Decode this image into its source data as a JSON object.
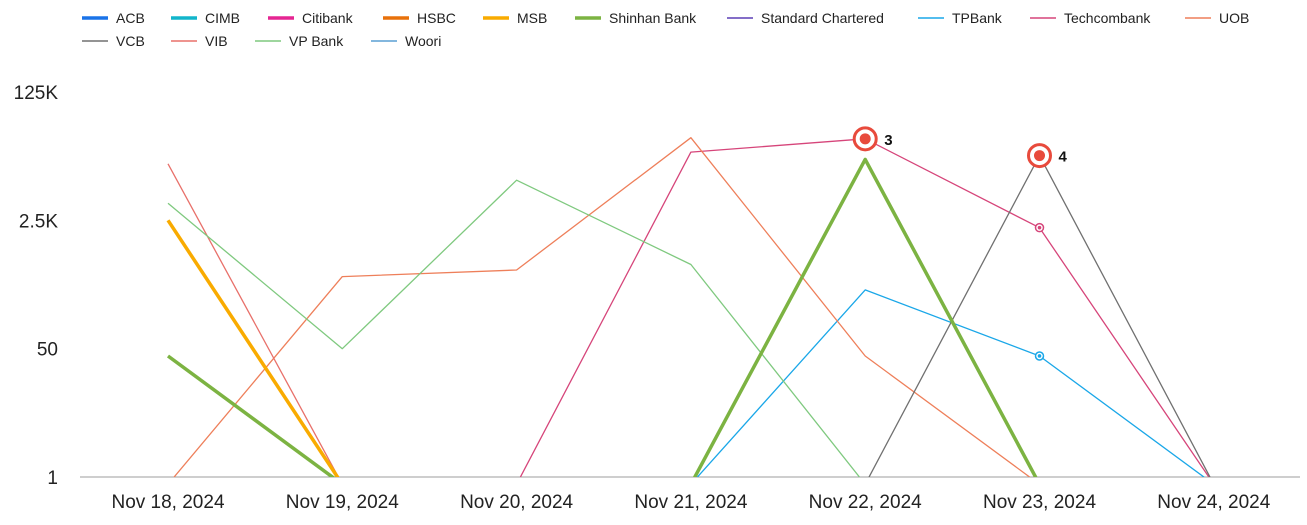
{
  "chart_data": {
    "type": "line",
    "title": "",
    "xlabel": "",
    "ylabel": "",
    "y_scale": "log",
    "y_ticks": [
      {
        "value": 1,
        "label": "1"
      },
      {
        "value": 50,
        "label": "50"
      },
      {
        "value": 2500,
        "label": "2.5K"
      },
      {
        "value": 125000,
        "label": "125K"
      }
    ],
    "ylim": [
      1,
      125000
    ],
    "categories": [
      "Nov 18, 2024",
      "Nov 19, 2024",
      "Nov 20, 2024",
      "Nov 21, 2024",
      "Nov 22, 2024",
      "Nov 23, 2024",
      "Nov 24, 2024"
    ],
    "legend_position": "top-left",
    "grid": false,
    "series": [
      {
        "name": "ACB",
        "color": "#1a73e8",
        "width": 3.5,
        "values": [
          null,
          null,
          null,
          null,
          null,
          null,
          null
        ]
      },
      {
        "name": "CIMB",
        "color": "#12b5cb",
        "width": 3.5,
        "values": [
          null,
          null,
          null,
          null,
          null,
          null,
          null
        ]
      },
      {
        "name": "Citibank",
        "color": "#e52592",
        "width": 3.5,
        "values": [
          null,
          null,
          null,
          null,
          null,
          null,
          null
        ]
      },
      {
        "name": "HSBC",
        "color": "#e8710a",
        "width": 3.5,
        "values": [
          null,
          null,
          null,
          null,
          null,
          null,
          null
        ]
      },
      {
        "name": "MSB",
        "color": "#f9ab00",
        "width": 3.5,
        "values": [
          2500,
          0.8,
          null,
          null,
          null,
          null,
          null
        ]
      },
      {
        "name": "Shinhan Bank",
        "color": "#7cb342",
        "width": 3.5,
        "values": [
          40,
          0.8,
          null,
          0.8,
          16000,
          0.8,
          null
        ]
      },
      {
        "name": "Standard Chartered",
        "color": "#5b3fb5",
        "width": 1.3,
        "values": [
          null,
          null,
          null,
          null,
          null,
          null,
          null
        ]
      },
      {
        "name": "TPBank",
        "color": "#1aa7e8",
        "width": 1.3,
        "values": [
          null,
          null,
          null,
          0.8,
          300,
          40,
          0.8
        ]
      },
      {
        "name": "Techcombank",
        "color": "#d6457a",
        "width": 1.3,
        "values": [
          null,
          null,
          0.8,
          20000,
          30000,
          2000,
          0.8
        ]
      },
      {
        "name": "UOB",
        "color": "#ee7f5a",
        "width": 1.3,
        "values": [
          0.8,
          450,
          550,
          31000,
          40,
          0.8,
          null
        ]
      },
      {
        "name": "VCB",
        "color": "#707070",
        "width": 1.3,
        "values": [
          null,
          null,
          null,
          null,
          0.8,
          18000,
          0.8
        ]
      },
      {
        "name": "VIB",
        "color": "#e8706a",
        "width": 1.3,
        "values": [
          14000,
          0.8,
          null,
          null,
          null,
          null,
          null
        ]
      },
      {
        "name": "VP Bank",
        "color": "#7fc97f",
        "width": 1.3,
        "values": [
          4200,
          50,
          8500,
          650,
          0.8,
          null,
          null
        ]
      },
      {
        "name": "Woori",
        "color": "#5a9fd4",
        "width": 1.3,
        "values": [
          null,
          null,
          null,
          null,
          null,
          null,
          null
        ]
      }
    ],
    "annotations": [
      {
        "label": "3",
        "x": "Nov 22, 2024",
        "y": 30000,
        "color": "#e84a3c"
      },
      {
        "label": "4",
        "x": "Nov 23, 2024",
        "y": 18000,
        "color": "#e84a3c"
      }
    ],
    "small_markers": [
      {
        "series": "Techcombank",
        "x": "Nov 23, 2024",
        "y": 2000
      },
      {
        "series": "TPBank",
        "x": "Nov 23, 2024",
        "y": 40
      }
    ]
  }
}
